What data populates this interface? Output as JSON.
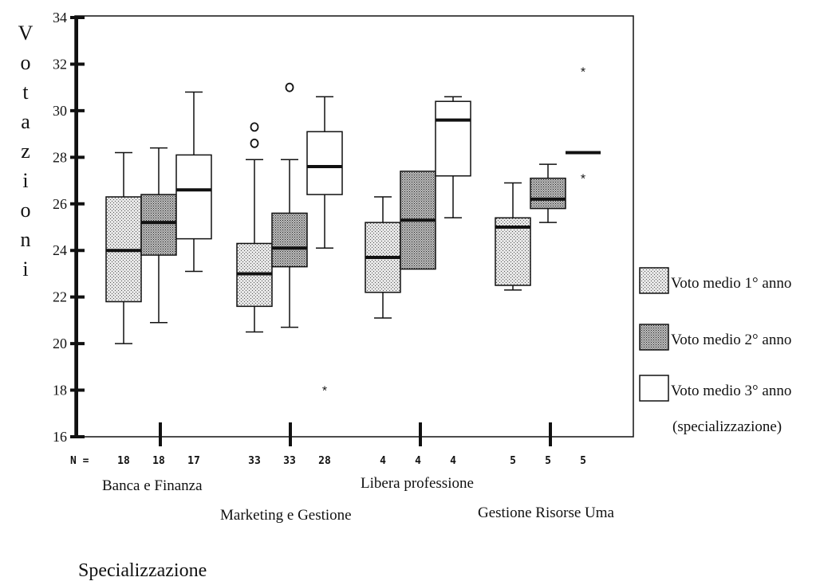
{
  "chart_data": {
    "type": "boxplot",
    "ylabel": "Votazioni",
    "xlabel": "Specializzazione",
    "ylim": [
      16,
      34
    ],
    "yticks": [
      16,
      18,
      20,
      22,
      24,
      26,
      28,
      30,
      32,
      34
    ],
    "n_prefix": "N =",
    "groups": [
      "Banca e Finanza",
      "Marketing e Gestione",
      "Libera professione",
      "Gestione Risorse Uma"
    ],
    "series": [
      {
        "name": "Voto medio 1° anno",
        "fill": "light-dots"
      },
      {
        "name": "Voto medio 2° anno",
        "fill": "dark-dots"
      },
      {
        "name": "Voto medio 3° anno",
        "fill": "white"
      }
    ],
    "legend_note": "(specializzazione)",
    "boxes": [
      {
        "group": 0,
        "series": 0,
        "n": "18",
        "min": 20.0,
        "q1": 21.8,
        "median": 24.0,
        "q3": 26.3,
        "max": 28.2,
        "outliers": []
      },
      {
        "group": 0,
        "series": 1,
        "n": "18",
        "min": 20.9,
        "q1": 23.8,
        "median": 25.2,
        "q3": 26.4,
        "max": 28.4,
        "outliers": []
      },
      {
        "group": 0,
        "series": 2,
        "n": "17",
        "min": 23.1,
        "q1": 24.5,
        "median": 26.6,
        "q3": 28.1,
        "max": 30.8,
        "outliers": []
      },
      {
        "group": 1,
        "series": 0,
        "n": "33",
        "min": 20.5,
        "q1": 21.6,
        "median": 23.0,
        "q3": 24.3,
        "max": 27.9,
        "outliers": [
          {
            "value": 28.6,
            "marker": "o"
          },
          {
            "value": 29.3,
            "marker": "o"
          }
        ]
      },
      {
        "group": 1,
        "series": 1,
        "n": "33",
        "min": 20.7,
        "q1": 23.3,
        "median": 24.1,
        "q3": 25.6,
        "max": 27.9,
        "outliers": [
          {
            "value": 31.0,
            "marker": "o"
          }
        ]
      },
      {
        "group": 1,
        "series": 2,
        "n": "28",
        "min": 24.1,
        "q1": 26.4,
        "median": 27.6,
        "q3": 29.1,
        "max": 30.6,
        "outliers": [
          {
            "value": 18.1,
            "marker": "*"
          }
        ]
      },
      {
        "group": 2,
        "series": 0,
        "n": "4",
        "min": 21.1,
        "q1": 22.2,
        "median": 23.7,
        "q3": 25.2,
        "max": 26.3,
        "outliers": []
      },
      {
        "group": 2,
        "series": 1,
        "n": "4",
        "min": 23.2,
        "q1": 23.2,
        "median": 25.3,
        "q3": 27.4,
        "max": 27.4,
        "outliers": []
      },
      {
        "group": 2,
        "series": 2,
        "n": "4",
        "min": 25.4,
        "q1": 27.2,
        "median": 29.6,
        "q3": 30.4,
        "max": 30.6,
        "outliers": []
      },
      {
        "group": 3,
        "series": 0,
        "n": "5",
        "min": 22.3,
        "q1": 22.5,
        "median": 25.0,
        "q3": 25.4,
        "max": 26.9,
        "outliers": []
      },
      {
        "group": 3,
        "series": 1,
        "n": "5",
        "min": 25.2,
        "q1": 25.8,
        "median": 26.2,
        "q3": 27.1,
        "max": 27.7,
        "outliers": []
      },
      {
        "group": 3,
        "series": 2,
        "n": "5",
        "min": 28.2,
        "q1": 28.2,
        "median": 28.2,
        "q3": 28.2,
        "max": 28.2,
        "outliers": [
          {
            "value": 31.8,
            "marker": "*"
          },
          {
            "value": 27.2,
            "marker": "*"
          }
        ]
      }
    ]
  }
}
